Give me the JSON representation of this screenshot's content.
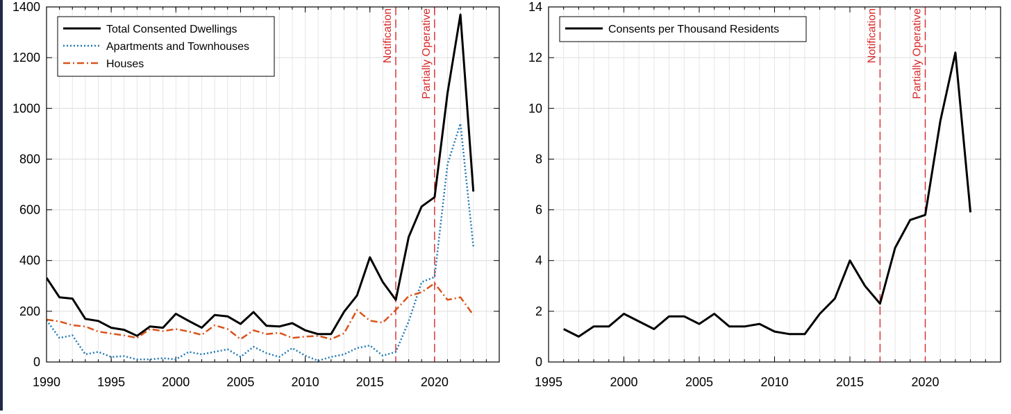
{
  "chart_data": [
    {
      "type": "line",
      "title": "",
      "xlabel": "",
      "ylabel": "",
      "xlim": [
        1990,
        2025
      ],
      "ylim": [
        0,
        1400
      ],
      "xticks": [
        1990,
        1995,
        2000,
        2005,
        2010,
        2015,
        2020
      ],
      "yticks": [
        0,
        200,
        400,
        600,
        800,
        1000,
        1200,
        1400
      ],
      "grid": true,
      "legend_position": "top-left",
      "vlines": [
        {
          "x": 2017,
          "label": "Notification",
          "color": "#d62728"
        },
        {
          "x": 2020,
          "label": "Partially Operative",
          "color": "#d62728"
        }
      ],
      "series": [
        {
          "name": "Total Consented Dwellings",
          "color": "#000000",
          "style": "solid",
          "x": [
            1990,
            1991,
            1992,
            1993,
            1994,
            1995,
            1996,
            1997,
            1998,
            1999,
            2000,
            2001,
            2002,
            2003,
            2004,
            2005,
            2006,
            2007,
            2008,
            2009,
            2010,
            2011,
            2012,
            2013,
            2014,
            2015,
            2016,
            2017,
            2018,
            2019,
            2020,
            2021,
            2022,
            2023
          ],
          "y": [
            332,
            255,
            250,
            170,
            162,
            135,
            127,
            103,
            140,
            135,
            190,
            162,
            135,
            185,
            180,
            150,
            197,
            143,
            140,
            153,
            125,
            110,
            110,
            198,
            262,
            413,
            315,
            245,
            493,
            613,
            650,
            1060,
            1370,
            672
          ]
        },
        {
          "name": "Apartments and Townhouses",
          "color": "#1f77b4",
          "style": "dotted",
          "x": [
            1990,
            1991,
            1992,
            1993,
            1994,
            1995,
            1996,
            1997,
            1998,
            1999,
            2000,
            2001,
            2002,
            2003,
            2004,
            2005,
            2006,
            2007,
            2008,
            2009,
            2010,
            2011,
            2012,
            2013,
            2014,
            2015,
            2016,
            2017,
            2018,
            2019,
            2020,
            2021,
            2022,
            2023
          ],
          "y": [
            165,
            95,
            105,
            30,
            40,
            20,
            23,
            10,
            10,
            15,
            10,
            40,
            30,
            40,
            50,
            20,
            60,
            35,
            20,
            55,
            25,
            5,
            20,
            30,
            55,
            65,
            25,
            40,
            160,
            315,
            335,
            780,
            940,
            455
          ]
        },
        {
          "name": "Houses",
          "color": "#d95319",
          "style": "dashdot",
          "x": [
            1990,
            1991,
            1992,
            1993,
            1994,
            1995,
            1996,
            1997,
            1998,
            1999,
            2000,
            2001,
            2002,
            2003,
            2004,
            2005,
            2006,
            2007,
            2008,
            2009,
            2010,
            2011,
            2012,
            2013,
            2014,
            2015,
            2016,
            2017,
            2018,
            2019,
            2020,
            2021,
            2022,
            2023
          ],
          "y": [
            167,
            160,
            145,
            140,
            120,
            112,
            105,
            95,
            130,
            122,
            130,
            120,
            107,
            145,
            130,
            90,
            125,
            110,
            115,
            95,
            100,
            103,
            90,
            113,
            205,
            163,
            155,
            205,
            260,
            275,
            310,
            245,
            255,
            185
          ]
        }
      ]
    },
    {
      "type": "line",
      "title": "",
      "xlabel": "",
      "ylabel": "",
      "xlim": [
        1995,
        2025
      ],
      "ylim": [
        0,
        14
      ],
      "xticks": [
        1995,
        2000,
        2005,
        2010,
        2015,
        2020
      ],
      "yticks": [
        0,
        2,
        4,
        6,
        8,
        10,
        12,
        14
      ],
      "grid": true,
      "legend_position": "top-left",
      "vlines": [
        {
          "x": 2017,
          "label": "Notification",
          "color": "#d62728"
        },
        {
          "x": 2020,
          "label": "Partially Operative",
          "color": "#d62728"
        }
      ],
      "series": [
        {
          "name": "Consents per Thousand Residents",
          "color": "#000000",
          "style": "solid",
          "x": [
            1996,
            1997,
            1998,
            1999,
            2000,
            2001,
            2002,
            2003,
            2004,
            2005,
            2006,
            2007,
            2008,
            2009,
            2010,
            2011,
            2012,
            2013,
            2014,
            2015,
            2016,
            2017,
            2018,
            2019,
            2020,
            2021,
            2022,
            2023
          ],
          "y": [
            1.3,
            1.0,
            1.4,
            1.4,
            1.9,
            1.6,
            1.3,
            1.8,
            1.8,
            1.5,
            1.9,
            1.4,
            1.4,
            1.5,
            1.2,
            1.1,
            1.1,
            1.9,
            2.5,
            4.0,
            3.0,
            2.3,
            4.5,
            5.6,
            5.8,
            9.5,
            12.2,
            5.9
          ]
        }
      ]
    }
  ]
}
